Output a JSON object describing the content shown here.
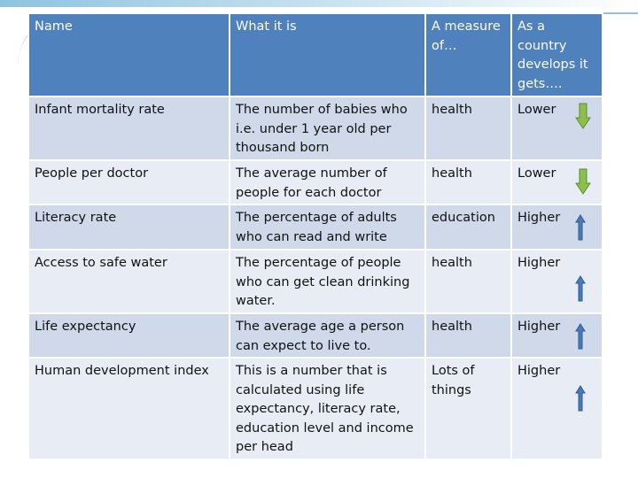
{
  "table": {
    "headers": {
      "name": "Name",
      "what": "What it is",
      "measure": "A measure of…",
      "develops": "As a country develops it gets…."
    },
    "rows": [
      {
        "name": "Infant mortality rate",
        "what": "The number of babies who i.e. under 1 year old per thousand born",
        "measure": "health",
        "direction": "Lower",
        "arrow_icon": "down-arrow-icon"
      },
      {
        "name": "People per doctor",
        "what": "The average number of people for each doctor",
        "measure": "health",
        "direction": "Lower",
        "arrow_icon": "down-arrow-icon"
      },
      {
        "name": "Literacy rate",
        "what": "The percentage of adults who can read and write",
        "measure": "education",
        "direction": "Higher",
        "arrow_icon": "up-arrow-icon"
      },
      {
        "name": "Access to safe water",
        "what": "The percentage of people who can get clean drinking water.",
        "measure": "health",
        "direction": "Higher",
        "arrow_icon": "up-arrow-icon"
      },
      {
        "name": "Life expectancy",
        "what": "The average age a person can expect to live to.",
        "measure": "health",
        "direction": "Higher",
        "arrow_icon": "up-arrow-icon"
      },
      {
        "name": "Human development index",
        "what": "This is a number that is calculated using life expectancy, literacy rate, education level and income per head",
        "measure": "Lots of things",
        "direction": "Higher",
        "arrow_icon": "up-arrow-icon"
      }
    ]
  },
  "colors": {
    "header_bg": "#4f81bd",
    "row_dark": "#cfd9ea",
    "row_light": "#e8edf5",
    "down_arrow": "#8bbf4e",
    "up_arrow": "#4a7ab8",
    "accent_line": "#8ec3e0"
  }
}
